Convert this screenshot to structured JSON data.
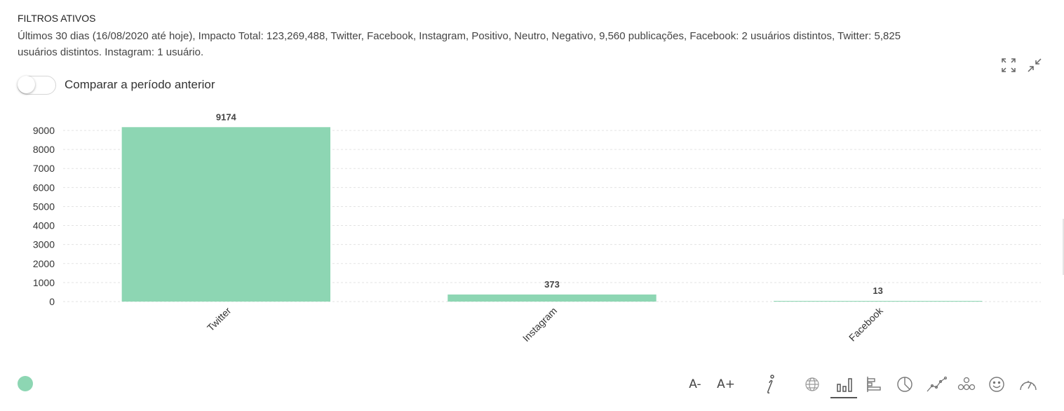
{
  "filters": {
    "title": "FILTROS ATIVOS",
    "description": "Últimos 30 dias (16/08/2020 até hoje), Impacto Total: 123,269,488, Twitter, Facebook, Instagram, Positivo, Neutro, Negativo, 9,560 publicações, Facebook: 2 usuários distintos, Twitter: 5,825 usuários distintos. Instagram: 1 usuário."
  },
  "header_icons": [
    "expand-icon",
    "collapse-icon"
  ],
  "compare": {
    "label": "Comparar a período anterior",
    "enabled": false
  },
  "chart_data": {
    "type": "bar",
    "categories": [
      "Twitter",
      "Instagram",
      "Facebook"
    ],
    "values": [
      9174,
      373,
      13
    ],
    "value_labels": [
      "9174",
      "373",
      "13"
    ],
    "ylim": [
      0,
      9000
    ],
    "yticks": [
      0,
      1000,
      2000,
      3000,
      4000,
      5000,
      6000,
      7000,
      8000,
      9000
    ],
    "grid": true,
    "bar_color": "#8dd6b3",
    "legend": "bottom-left"
  },
  "toolbar": {
    "font_decrease_label": "A-",
    "font_increase_label": "A+",
    "icons": [
      "info-icon",
      "globe-icon",
      "bar-chart-icon",
      "horizontal-bar-icon",
      "pie-chart-icon",
      "line-chart-icon",
      "network-icon",
      "smiley-icon",
      "gauge-icon"
    ],
    "active": "bar-chart-icon"
  }
}
